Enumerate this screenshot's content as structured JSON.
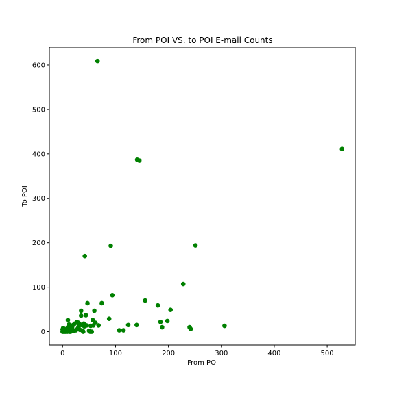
{
  "chart_data": {
    "type": "scatter",
    "title": "From POI VS. to POI E-mail Counts",
    "xlabel": "From POI",
    "ylabel": "To POI",
    "xlim": [
      -25,
      553
    ],
    "ylim": [
      -30,
      640
    ],
    "xticks": [
      0,
      100,
      200,
      300,
      400,
      500
    ],
    "yticks": [
      0,
      100,
      200,
      300,
      400,
      500,
      600
    ],
    "grid": false,
    "marker_color": "#008000",
    "series": [
      {
        "x": [
          0,
          0,
          1,
          1,
          2,
          2,
          3,
          3,
          4,
          5,
          6,
          7,
          8,
          9,
          10,
          10,
          11,
          12,
          13,
          14,
          15,
          16,
          17,
          18,
          20,
          21,
          23,
          25,
          27,
          28,
          30,
          30,
          32,
          33,
          35,
          35,
          36,
          38,
          39,
          40,
          41,
          42,
          44,
          45,
          47,
          50,
          52,
          53,
          55,
          57,
          58,
          60,
          62,
          66,
          68,
          74,
          88,
          91,
          94,
          107,
          115,
          124,
          140,
          141,
          145,
          156,
          180,
          185,
          188,
          198,
          204,
          228,
          240,
          242,
          251,
          306,
          528
        ],
        "y": [
          0,
          5,
          2,
          8,
          0,
          4,
          1,
          6,
          0,
          3,
          0,
          2,
          5,
          0,
          10,
          26,
          1,
          16,
          0,
          4,
          0,
          2,
          12,
          8,
          15,
          2,
          18,
          3,
          22,
          6,
          20,
          10,
          17,
          4,
          36,
          47,
          15,
          2,
          0,
          18,
          12,
          170,
          37,
          14,
          64,
          2,
          0,
          13,
          0,
          26,
          14,
          47,
          20,
          609,
          14,
          64,
          29,
          193,
          82,
          3,
          3,
          15,
          15,
          387,
          385,
          70,
          59,
          22,
          10,
          24,
          49,
          107,
          10,
          6,
          194,
          13,
          411
        ]
      }
    ]
  }
}
